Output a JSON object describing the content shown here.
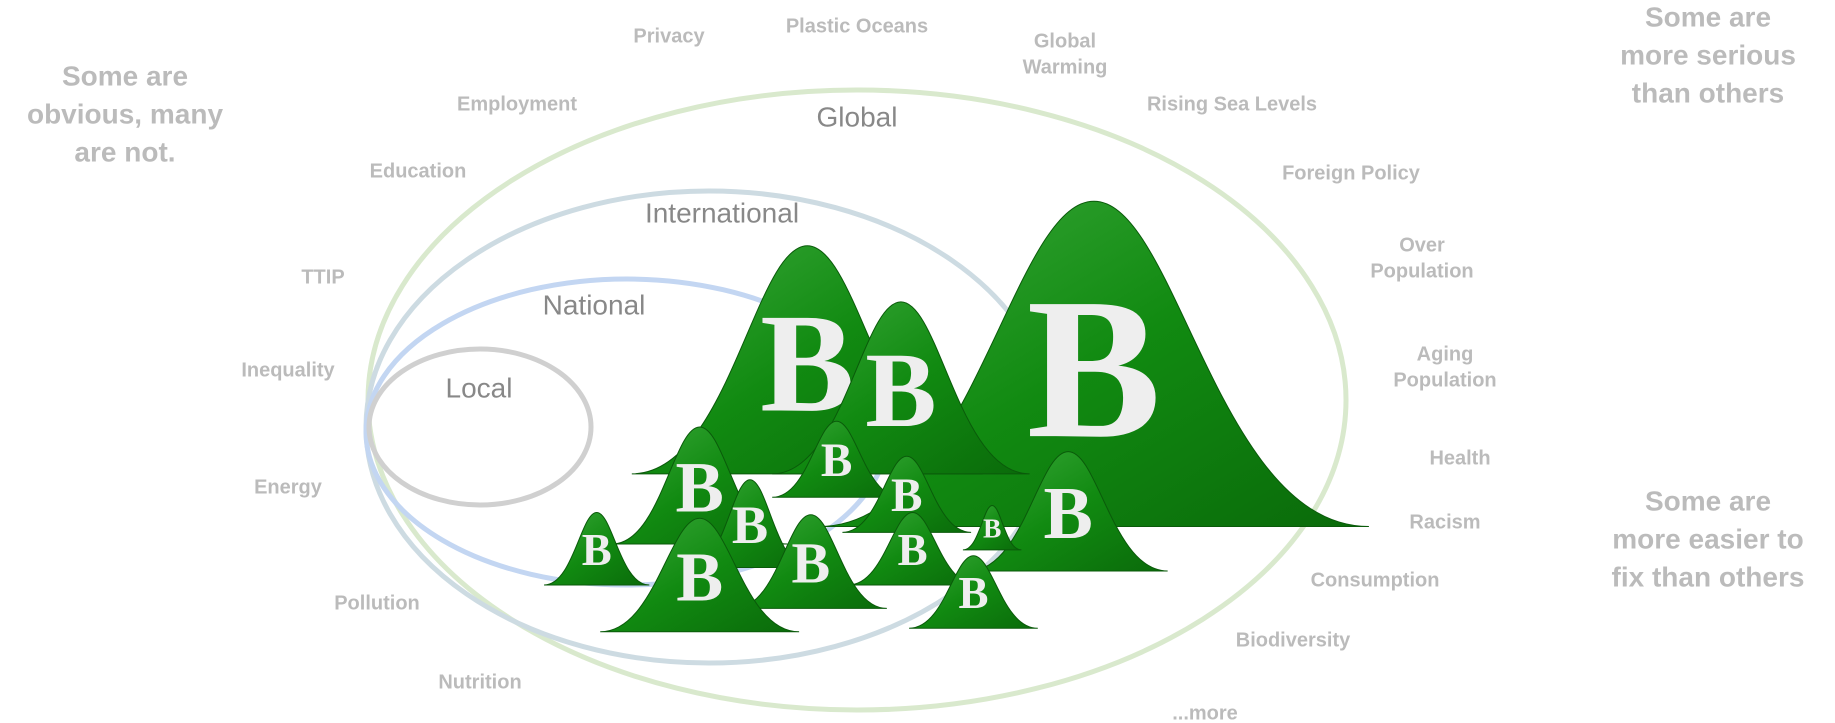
{
  "side_notes": [
    [
      "Some are",
      "obvious, many",
      "are not."
    ],
    [
      "Some are",
      "more serious",
      "than others"
    ],
    [
      "Some are",
      "more easier to",
      "fix than others"
    ]
  ],
  "rings": [
    "Global",
    "International",
    "National",
    "Local"
  ],
  "issues": [
    [
      "Privacy"
    ],
    [
      "Plastic Oceans"
    ],
    [
      "Global",
      "Warming"
    ],
    [
      "Rising Sea Levels"
    ],
    [
      "Foreign Policy"
    ],
    [
      "Over",
      "Population"
    ],
    [
      "Aging",
      "Population"
    ],
    [
      "Health"
    ],
    [
      "Racism"
    ],
    [
      "Consumption"
    ],
    [
      "Biodiversity"
    ],
    [
      "...more"
    ],
    [
      "Nutrition"
    ],
    [
      "Pollution"
    ],
    [
      "Energy"
    ],
    [
      "Inequality"
    ],
    [
      "TTIP"
    ],
    [
      "Education"
    ],
    [
      "Employment"
    ]
  ],
  "mountain_letter": "B"
}
